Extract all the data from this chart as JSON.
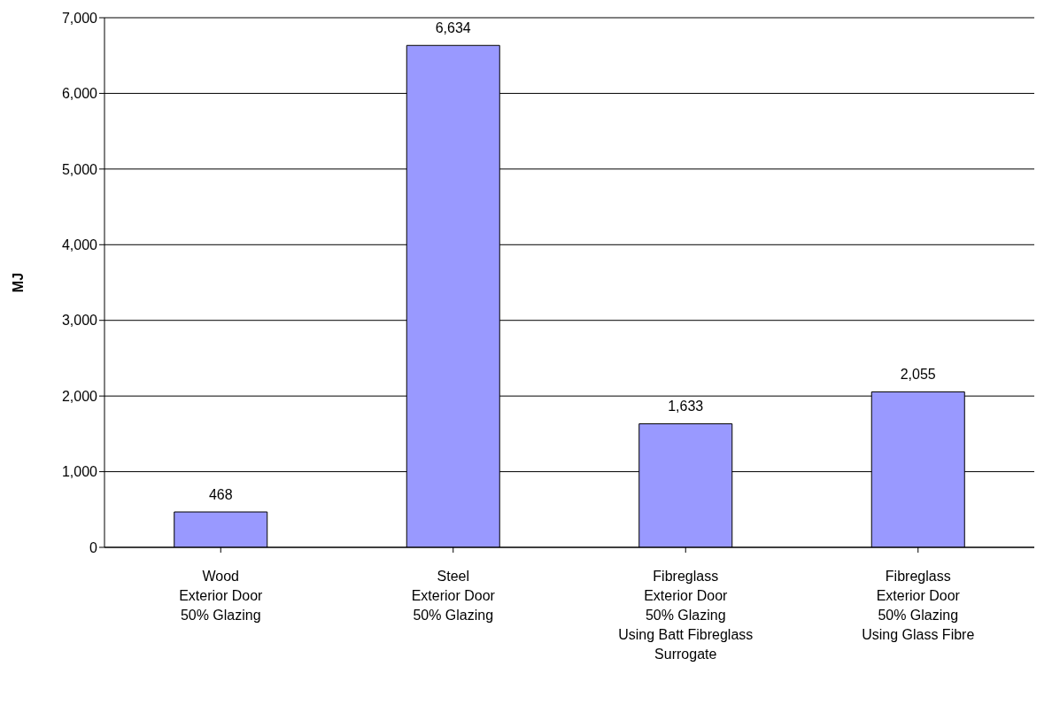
{
  "chart_data": {
    "type": "bar",
    "ylabel": "MJ",
    "categories": [
      "Wood\nExterior Door\n50% Glazing",
      "Steel\nExterior Door\n50% Glazing",
      "Fibreglass\nExterior Door\n50% Glazing\nUsing Batt Fibreglass\nSurrogate",
      "Fibreglass\nExterior Door\n50% Glazing\nUsing Glass Fibre"
    ],
    "values": [
      468,
      6634,
      1633,
      2055
    ],
    "color": "#9999ff",
    "ylim": [
      0,
      7000
    ],
    "yticks": [
      {
        "value": 0,
        "label": "0"
      },
      {
        "value": 1000,
        "label": "1,000"
      },
      {
        "value": 2000,
        "label": "2,000"
      },
      {
        "value": 3000,
        "label": "3,000"
      },
      {
        "value": 4000,
        "label": "4,000"
      },
      {
        "value": 5000,
        "label": "5,000"
      },
      {
        "value": 6000,
        "label": "6,000"
      },
      {
        "value": 7000,
        "label": "7,000"
      }
    ],
    "value_labels": [
      "468",
      "6,634",
      "1,633",
      "2,055"
    ],
    "grid": "y",
    "legend": false
  }
}
